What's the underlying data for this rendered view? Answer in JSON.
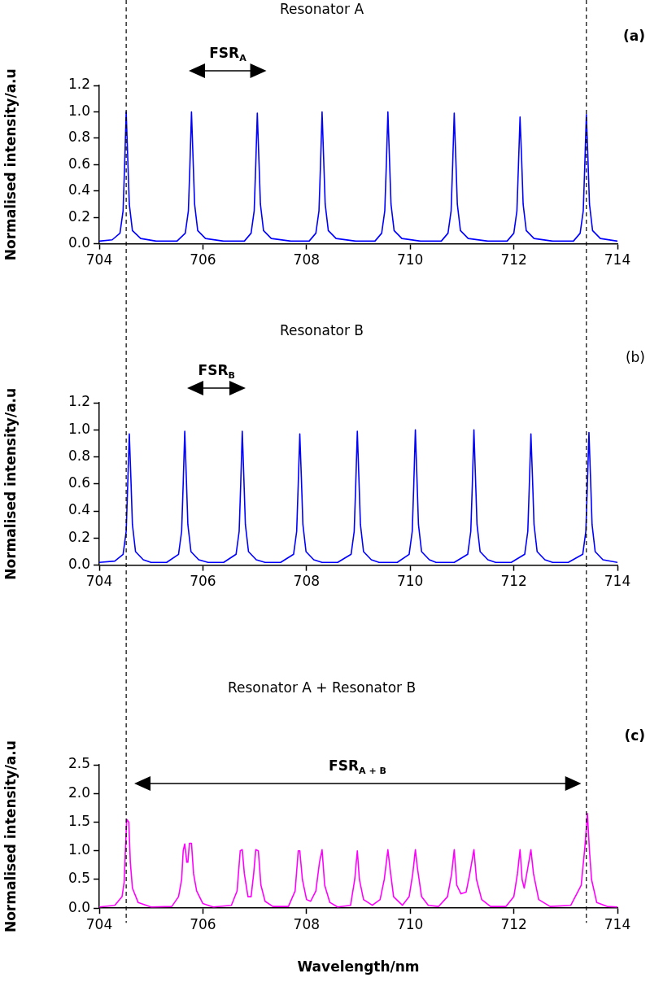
{
  "chart_data": [
    {
      "type": "line",
      "title": "Resonator A",
      "ylabel": "Normalised intensity/a.u",
      "annotations": [
        "(a)",
        "FSR$_{A}$"
      ],
      "xlim": [
        704,
        714
      ],
      "xticks": [
        704,
        706,
        708,
        710,
        712,
        714
      ],
      "ylim": [
        0,
        1.2
      ],
      "yticks": [
        {
          "value": 0,
          "label": "0.0"
        },
        0.2,
        0.4,
        0.6,
        0.8,
        {
          "value": 1,
          "label": "1.0"
        },
        1.2
      ],
      "grid": false,
      "legend": false,
      "marker": "none",
      "line_style": "solid",
      "ref_lines": [
        {
          "axis": "x",
          "value": 704.52,
          "line_style": "dashed",
          "color": "#000000"
        },
        {
          "axis": "x",
          "value": 713.4,
          "line_style": "dashed",
          "color": "#000000"
        }
      ],
      "series": [
        {
          "color": "#0000ff",
          "x": [
            704,
            704.25,
            704.4,
            704.46,
            704.49,
            704.52,
            704.55,
            704.58,
            704.64,
            704.8,
            705.1,
            705.5,
            705.66,
            705.72,
            705.75,
            705.78,
            705.81,
            705.84,
            705.9,
            706.05,
            706.4,
            706.8,
            706.93,
            706.99,
            707.02,
            707.05,
            707.08,
            707.11,
            707.17,
            707.32,
            707.7,
            708.05,
            708.18,
            708.24,
            708.27,
            708.3,
            708.33,
            708.36,
            708.42,
            708.57,
            708.95,
            709.32,
            709.45,
            709.51,
            709.54,
            709.57,
            709.6,
            709.63,
            709.69,
            709.84,
            710.2,
            710.6,
            710.73,
            710.79,
            710.82,
            710.85,
            710.88,
            710.91,
            710.97,
            711.12,
            711.5,
            711.87,
            712.0,
            712.06,
            712.09,
            712.12,
            712.15,
            712.18,
            712.24,
            712.39,
            712.75,
            713.15,
            713.28,
            713.34,
            713.37,
            713.4,
            713.43,
            713.46,
            713.52,
            713.67,
            714
          ],
          "values": [
            0.02,
            0.03,
            0.08,
            0.25,
            0.6,
            1.0,
            0.65,
            0.3,
            0.1,
            0.04,
            0.02,
            0.02,
            0.08,
            0.25,
            0.6,
            1.0,
            0.65,
            0.3,
            0.1,
            0.04,
            0.02,
            0.02,
            0.08,
            0.25,
            0.6,
            0.99,
            0.65,
            0.3,
            0.1,
            0.04,
            0.02,
            0.02,
            0.08,
            0.25,
            0.6,
            1.0,
            0.65,
            0.3,
            0.1,
            0.04,
            0.02,
            0.02,
            0.08,
            0.25,
            0.6,
            1.0,
            0.65,
            0.3,
            0.1,
            0.04,
            0.02,
            0.02,
            0.08,
            0.25,
            0.6,
            0.99,
            0.65,
            0.3,
            0.1,
            0.04,
            0.02,
            0.02,
            0.08,
            0.25,
            0.6,
            0.96,
            0.65,
            0.3,
            0.1,
            0.04,
            0.02,
            0.02,
            0.08,
            0.25,
            0.6,
            0.98,
            0.65,
            0.3,
            0.1,
            0.04,
            0.02
          ]
        }
      ]
    },
    {
      "type": "line",
      "title": "Resonator B",
      "ylabel": "Normalised intensity/a.u",
      "annotations": [
        "(b)",
        "FSR$_{B}$"
      ],
      "xlim": [
        704,
        714
      ],
      "xticks": [
        704,
        706,
        708,
        710,
        712,
        714
      ],
      "ylim": [
        0,
        1.2
      ],
      "yticks": [
        {
          "value": 0,
          "label": "0.0"
        },
        0.2,
        0.4,
        0.6,
        0.8,
        {
          "value": 1,
          "label": "1.0"
        },
        1.2
      ],
      "grid": false,
      "legend": false,
      "marker": "none",
      "line_style": "solid",
      "ref_lines": [
        {
          "axis": "x",
          "value": 704.52,
          "line_style": "dashed",
          "color": "#000000"
        },
        {
          "axis": "x",
          "value": 713.4,
          "line_style": "dashed",
          "color": "#000000"
        }
      ],
      "series": [
        {
          "color": "#0000ff",
          "x": [
            704,
            704.3,
            704.46,
            704.52,
            704.55,
            704.58,
            704.61,
            704.64,
            704.7,
            704.85,
            705.0,
            705.3,
            705.53,
            705.59,
            705.62,
            705.65,
            705.68,
            705.71,
            705.77,
            705.92,
            706.1,
            706.4,
            706.64,
            706.7,
            706.73,
            706.76,
            706.79,
            706.82,
            706.88,
            707.03,
            707.2,
            707.5,
            707.75,
            707.81,
            707.84,
            707.87,
            707.9,
            707.93,
            707.99,
            708.14,
            708.3,
            708.6,
            708.86,
            708.92,
            708.95,
            708.98,
            709.01,
            709.04,
            709.1,
            709.25,
            709.4,
            709.75,
            709.98,
            710.04,
            710.07,
            710.1,
            710.13,
            710.16,
            710.22,
            710.37,
            710.5,
            710.85,
            711.11,
            711.17,
            711.2,
            711.23,
            711.26,
            711.29,
            711.35,
            711.5,
            711.65,
            711.95,
            712.21,
            712.27,
            712.3,
            712.33,
            712.36,
            712.39,
            712.45,
            712.6,
            712.75,
            713.05,
            713.33,
            713.39,
            713.42,
            713.45,
            713.48,
            713.51,
            713.57,
            713.72,
            714
          ],
          "values": [
            0.02,
            0.03,
            0.08,
            0.25,
            0.6,
            0.97,
            0.65,
            0.3,
            0.1,
            0.04,
            0.02,
            0.02,
            0.08,
            0.25,
            0.6,
            0.99,
            0.65,
            0.3,
            0.1,
            0.04,
            0.02,
            0.02,
            0.08,
            0.25,
            0.6,
            0.99,
            0.65,
            0.3,
            0.1,
            0.04,
            0.02,
            0.02,
            0.08,
            0.25,
            0.6,
            0.97,
            0.65,
            0.3,
            0.1,
            0.04,
            0.02,
            0.02,
            0.08,
            0.25,
            0.6,
            0.99,
            0.65,
            0.3,
            0.1,
            0.04,
            0.02,
            0.02,
            0.08,
            0.25,
            0.6,
            1.0,
            0.65,
            0.3,
            0.1,
            0.04,
            0.02,
            0.02,
            0.08,
            0.25,
            0.6,
            1.0,
            0.65,
            0.3,
            0.1,
            0.04,
            0.02,
            0.02,
            0.08,
            0.25,
            0.6,
            0.97,
            0.65,
            0.3,
            0.1,
            0.04,
            0.02,
            0.02,
            0.08,
            0.25,
            0.6,
            0.98,
            0.65,
            0.3,
            0.1,
            0.04,
            0.02
          ]
        }
      ]
    },
    {
      "type": "line",
      "title": "Resonator A + Resonator B",
      "xlabel": "Wavelength/nm",
      "ylabel": "Normalised intensity/a.u",
      "annotations": [
        "(c)",
        "FSR$_{A + B}$"
      ],
      "xlim": [
        704,
        714
      ],
      "xticks": [
        704,
        706,
        708,
        710,
        712,
        714
      ],
      "ylim": [
        0,
        2.5
      ],
      "yticks": [
        {
          "value": 0,
          "label": "0.0"
        },
        0.5,
        {
          "value": 1,
          "label": "1.0"
        },
        1.5,
        {
          "value": 2,
          "label": "2.0"
        },
        2.5
      ],
      "grid": false,
      "legend": false,
      "marker": "none",
      "line_style": "solid",
      "ref_lines": [
        {
          "axis": "x",
          "value": 704.52,
          "line_style": "dashed",
          "color": "#000000"
        },
        {
          "axis": "x",
          "value": 713.4,
          "line_style": "dashed",
          "color": "#000000"
        }
      ],
      "series": [
        {
          "color": "#ff00ff",
          "x": [
            704,
            704.3,
            704.44,
            704.48,
            704.5,
            704.53,
            704.57,
            704.6,
            704.64,
            704.75,
            705.0,
            705.4,
            705.53,
            705.59,
            705.62,
            705.65,
            705.69,
            705.71,
            705.74,
            705.78,
            705.82,
            705.88,
            706.0,
            706.2,
            706.55,
            706.66,
            706.72,
            706.76,
            706.8,
            706.87,
            706.93,
            706.98,
            707.02,
            707.07,
            707.12,
            707.2,
            707.35,
            707.65,
            707.78,
            707.84,
            707.87,
            707.92,
            708.0,
            708.08,
            708.18,
            708.25,
            708.3,
            708.35,
            708.45,
            708.6,
            708.85,
            708.93,
            708.98,
            709.02,
            709.1,
            709.27,
            709.42,
            709.5,
            709.57,
            709.61,
            709.68,
            709.85,
            709.98,
            710.05,
            710.1,
            710.14,
            710.22,
            710.35,
            710.55,
            710.72,
            710.8,
            710.85,
            710.9,
            710.98,
            711.08,
            711.15,
            711.23,
            711.28,
            711.38,
            711.55,
            711.85,
            712.0,
            712.07,
            712.12,
            712.16,
            712.2,
            712.25,
            712.33,
            712.38,
            712.48,
            712.7,
            713.1,
            713.3,
            713.37,
            713.42,
            713.46,
            713.5,
            713.6,
            713.8,
            714
          ],
          "values": [
            0.02,
            0.05,
            0.2,
            0.45,
            0.9,
            1.55,
            1.5,
            0.8,
            0.35,
            0.1,
            0.02,
            0.03,
            0.2,
            0.5,
            1.0,
            1.12,
            0.8,
            0.8,
            1.13,
            1.13,
            0.6,
            0.3,
            0.08,
            0.02,
            0.05,
            0.3,
            1.0,
            1.02,
            0.6,
            0.2,
            0.2,
            0.6,
            1.02,
            1.0,
            0.4,
            0.12,
            0.03,
            0.03,
            0.3,
            1.0,
            1.0,
            0.5,
            0.15,
            0.12,
            0.3,
            0.8,
            1.02,
            0.4,
            0.1,
            0.02,
            0.05,
            0.5,
            1.0,
            0.5,
            0.15,
            0.05,
            0.15,
            0.5,
            1.02,
            0.7,
            0.2,
            0.05,
            0.2,
            0.6,
            1.02,
            0.7,
            0.2,
            0.05,
            0.03,
            0.2,
            0.6,
            1.02,
            0.4,
            0.25,
            0.28,
            0.6,
            1.02,
            0.5,
            0.15,
            0.03,
            0.03,
            0.2,
            0.6,
            1.02,
            0.5,
            0.35,
            0.6,
            1.02,
            0.6,
            0.15,
            0.03,
            0.05,
            0.4,
            1.05,
            1.65,
            1.0,
            0.5,
            0.1,
            0.03,
            0.02
          ]
        }
      ]
    }
  ]
}
